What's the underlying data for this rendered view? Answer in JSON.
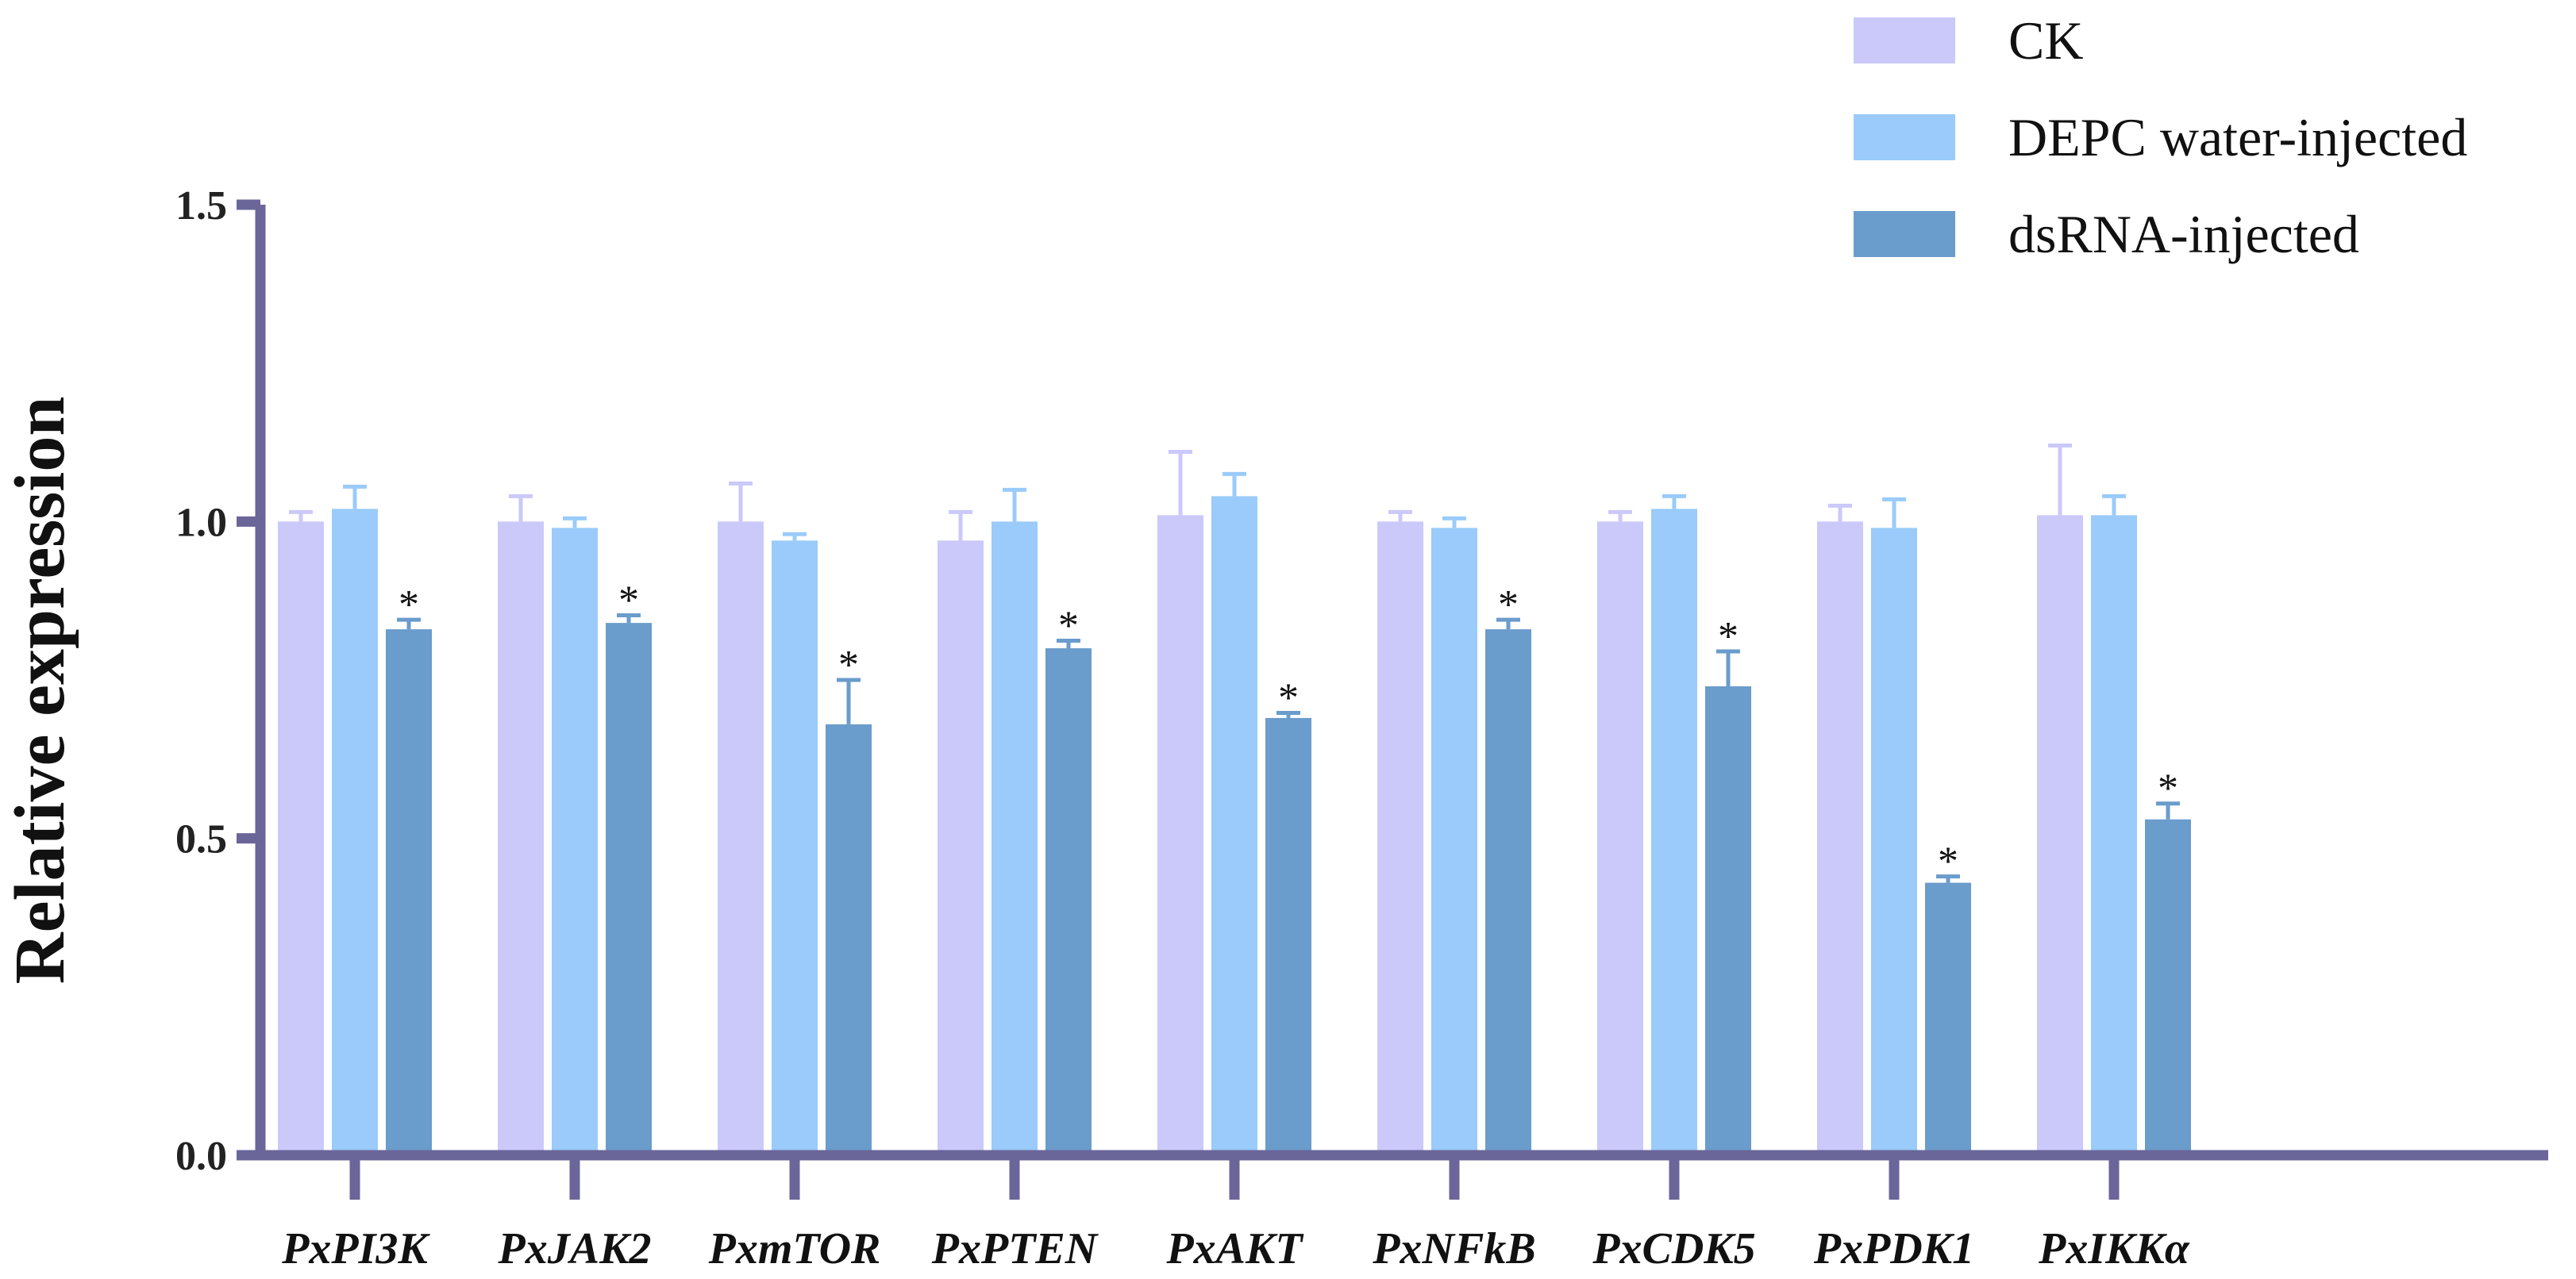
{
  "colors": {
    "axis": "#6a6699",
    "series": [
      "#cbc8fa",
      "#9acbfa",
      "#6a9ccc"
    ]
  },
  "chart_data": {
    "type": "bar",
    "ylabel": "Relative expression",
    "ylim": [
      0.0,
      1.5
    ],
    "yticks": [
      0.0,
      0.5,
      1.0,
      1.5
    ],
    "ytick_labels": [
      "0.0",
      "0.5",
      "1.0",
      "1.5"
    ],
    "legend_position": "top-right",
    "categories": [
      "PxPI3K",
      "PxJAK2",
      "PxmTOR",
      "PxPTEN",
      "PxAKT",
      "PxNFkB",
      "PxCDK5",
      "PxPDK1",
      "PxIKKα"
    ],
    "series": [
      {
        "name": "CK",
        "values": [
          1.0,
          1.0,
          1.0,
          0.97,
          1.01,
          1.0,
          1.0,
          1.0,
          1.01
        ],
        "errors": [
          0.015,
          0.04,
          0.06,
          0.045,
          0.1,
          0.015,
          0.015,
          0.025,
          0.11
        ],
        "significance": [
          "",
          "",
          "",
          "",
          "",
          "",
          "",
          "",
          ""
        ]
      },
      {
        "name": "DEPC water-injected",
        "values": [
          1.02,
          0.99,
          0.97,
          1.0,
          1.04,
          0.99,
          1.02,
          0.99,
          1.01
        ],
        "errors": [
          0.035,
          0.015,
          0.01,
          0.05,
          0.035,
          0.015,
          0.02,
          0.045,
          0.03
        ],
        "significance": [
          "",
          "",
          "",
          "",
          "",
          "",
          "",
          "",
          ""
        ]
      },
      {
        "name": "dsRNA-injected",
        "values": [
          0.83,
          0.84,
          0.68,
          0.8,
          0.69,
          0.83,
          0.74,
          0.43,
          0.53
        ],
        "errors": [
          0.015,
          0.012,
          0.07,
          0.012,
          0.008,
          0.015,
          0.055,
          0.01,
          0.025
        ],
        "significance": [
          "*",
          "*",
          "*",
          "*",
          "*",
          "*",
          "*",
          "*",
          "*"
        ]
      }
    ]
  }
}
